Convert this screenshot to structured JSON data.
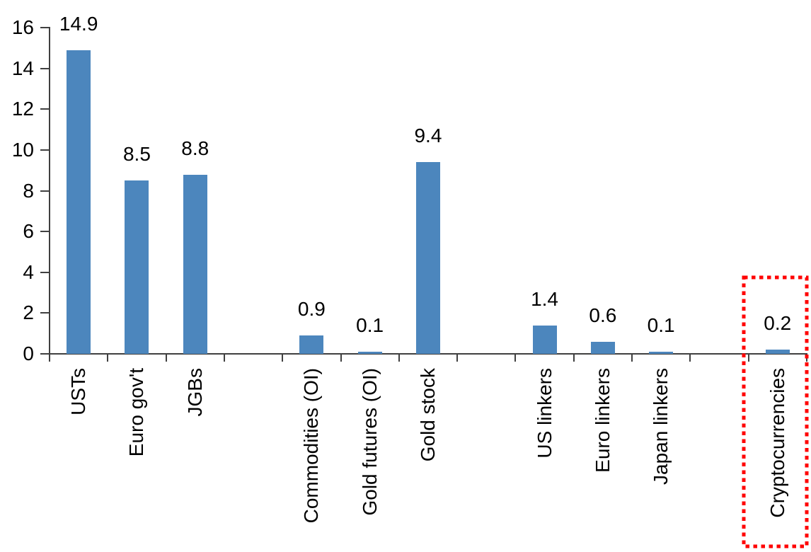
{
  "chart_data": {
    "type": "bar",
    "title": "",
    "xlabel": "",
    "ylabel": "",
    "categories": [
      "USTs",
      "Euro gov't",
      "JGBs",
      "Commodities (OI)",
      "Gold futures (OI)",
      "Gold stock",
      "US linkers",
      "Euro linkers",
      "Japan linkers",
      "Cryptocurrencies"
    ],
    "values": [
      14.9,
      8.5,
      8.8,
      0.9,
      0.1,
      9.4,
      1.4,
      0.6,
      0.1,
      0.2
    ],
    "data_labels": [
      "14.9",
      "8.5",
      "8.8",
      "0.9",
      "0.1",
      "9.4",
      "1.4",
      "0.6",
      "0.1",
      "0.2"
    ],
    "groups": [
      [
        "USTs",
        "Euro gov't",
        "JGBs"
      ],
      [
        "Commodities (OI)",
        "Gold futures (OI)",
        "Gold stock"
      ],
      [
        "US linkers",
        "Euro linkers",
        "Japan linkers"
      ],
      [
        "Cryptocurrencies"
      ]
    ],
    "ylim": [
      0,
      16
    ],
    "yticks": [
      0,
      2,
      4,
      6,
      8,
      10,
      12,
      14,
      16
    ],
    "grid": false,
    "legend": false,
    "x_labels_rotated_degrees": 90,
    "bar_color": "#4c86bd",
    "axis_color": "#404040",
    "text_color": "#000000",
    "highlight": {
      "category": "Cryptocurrencies",
      "shape": "dashed-rectangle",
      "color": "#ff0000"
    }
  }
}
